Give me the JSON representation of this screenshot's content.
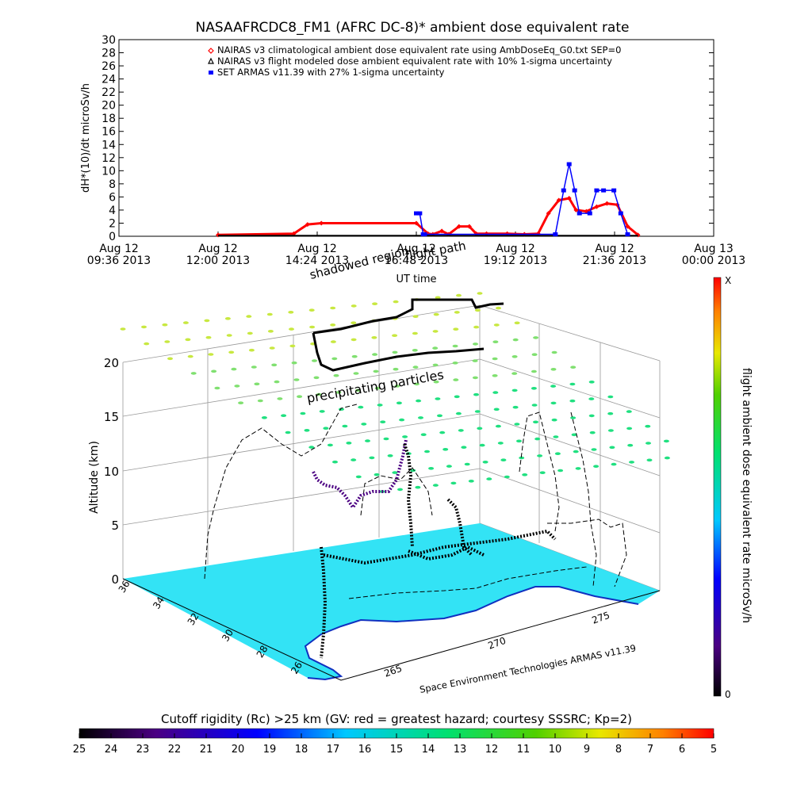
{
  "title": "NASAAFRCDC8_FM1 (AFRC DC-8)* ambient dose equivalent rate",
  "chart_data": [
    {
      "type": "line",
      "ylabel": "dH*(10)/dt microSv/h",
      "xlabel": "UT time",
      "ylim": [
        0,
        30
      ],
      "yticks": [
        0,
        2,
        4,
        6,
        8,
        10,
        12,
        14,
        16,
        18,
        20,
        22,
        24,
        26,
        28,
        30
      ],
      "xticks": [
        {
          "date": "Aug 12",
          "time": "09:36 2013"
        },
        {
          "date": "Aug 12",
          "time": "12:00 2013"
        },
        {
          "date": "Aug 12",
          "time": "14:24 2013"
        },
        {
          "date": "Aug 12",
          "time": "16:48 2013"
        },
        {
          "date": "Aug 12",
          "time": "19:12 2013"
        },
        {
          "date": "Aug 12",
          "time": "21:36 2013"
        },
        {
          "date": "Aug 13",
          "time": "00:00 2013"
        }
      ],
      "annotations": [
        "flight path",
        "shadowed region"
      ],
      "legend": [
        {
          "label": "NAIRAS v3 climatological ambient dose equivalent rate using AmbDoseEq_G0.txt SEP=0",
          "color": "#ff0000",
          "marker": "diamond"
        },
        {
          "label": "NAIRAS v3 flight modeled dose ambient equivalent rate with 10% 1-sigma uncertainty",
          "color": "#000000",
          "marker": "triangle"
        },
        {
          "label": "SET ARMAS v11.39 with 27% 1-sigma uncertainty",
          "color": "#0000ff",
          "marker": "square"
        }
      ],
      "series": [
        {
          "name": "NAIRAS v3 climatological ambient dose equivalent rate using AmbDoseEq_G0.txt SEP=0",
          "color": "#ff0000",
          "x": [
            "2013-08-12T12:00",
            "2013-08-12T13:50",
            "2013-08-12T14:10",
            "2013-08-12T14:30",
            "2013-08-12T16:48",
            "2013-08-12T17:05",
            "2013-08-12T17:12",
            "2013-08-12T17:25",
            "2013-08-12T17:35",
            "2013-08-12T17:50",
            "2013-08-12T18:05",
            "2013-08-12T18:15",
            "2013-08-12T18:30",
            "2013-08-12T19:00",
            "2013-08-12T19:25",
            "2013-08-12T19:45",
            "2013-08-12T20:00",
            "2013-08-12T20:15",
            "2013-08-12T20:30",
            "2013-08-12T20:40",
            "2013-08-12T20:55",
            "2013-08-12T21:10",
            "2013-08-12T21:25",
            "2013-08-12T21:40",
            "2013-08-12T21:55",
            "2013-08-12T22:10"
          ],
          "y": [
            0.2,
            0.4,
            1.8,
            2.0,
            2.0,
            0.4,
            0.3,
            0.8,
            0.3,
            1.5,
            1.5,
            0.4,
            0.4,
            0.4,
            0.3,
            0.4,
            3.5,
            5.5,
            5.8,
            4.0,
            3.8,
            4.5,
            5.0,
            4.8,
            1.5,
            0.2
          ]
        },
        {
          "name": "NAIRAS v3 flight modeled dose ambient equivalent rate with 10% 1-sigma uncertainty",
          "color": "#000000",
          "x": [
            "2013-08-12T12:00",
            "2013-08-12T16:48",
            "2013-08-12T19:12",
            "2013-08-12T22:10"
          ],
          "y": [
            0.1,
            0.1,
            0.1,
            0.1
          ]
        },
        {
          "name": "SET ARMAS v11.39 with 27% 1-sigma uncertainty",
          "color": "#0000ff",
          "x": [
            "2013-08-12T16:48",
            "2013-08-12T16:53",
            "2013-08-12T16:58",
            "2013-08-12T17:00",
            "2013-08-12T20:10",
            "2013-08-12T20:22",
            "2013-08-12T20:30",
            "2013-08-12T20:38",
            "2013-08-12T20:45",
            "2013-08-12T21:00",
            "2013-08-12T21:10",
            "2013-08-12T21:20",
            "2013-08-12T21:35",
            "2013-08-12T21:45",
            "2013-08-12T21:55"
          ],
          "y": [
            3.5,
            3.5,
            0.3,
            0.3,
            0.3,
            7.0,
            11.0,
            7.0,
            3.5,
            3.5,
            7.0,
            7.0,
            7.0,
            3.5,
            0.3
          ]
        }
      ]
    },
    {
      "type": "scatter",
      "title": "",
      "zlabel": "Altitude (km)",
      "zlim": [
        0,
        20
      ],
      "zticks": [
        0,
        5,
        10,
        15,
        20
      ],
      "lat_ticks": [
        "36",
        "34",
        "32",
        "30",
        "28",
        "26"
      ],
      "lon_ticks": [
        "265",
        "270",
        "275"
      ],
      "annotations": [
        "precipitating particles",
        "Space Environment Technologies ARMAS v11.39"
      ],
      "colorbar": {
        "label": "flight ambient dose equivalent rate microSv/h",
        "top_label": "X",
        "bottom_label": "0"
      }
    }
  ],
  "colorbar_bottom": {
    "title": "Cutoff rigidity (Rc) >25 km (GV: red = greatest hazard; courtesy SSSRC; Kp=2)",
    "ticks": [
      "25",
      "24",
      "23",
      "22",
      "21",
      "20",
      "19",
      "18",
      "17",
      "16",
      "15",
      "14",
      "13",
      "12",
      "11",
      "10",
      "9",
      "8",
      "7",
      "6",
      "5"
    ]
  },
  "colors": {
    "map_fill": "#33e3f5",
    "track": "#000000",
    "grid": "#999999"
  }
}
